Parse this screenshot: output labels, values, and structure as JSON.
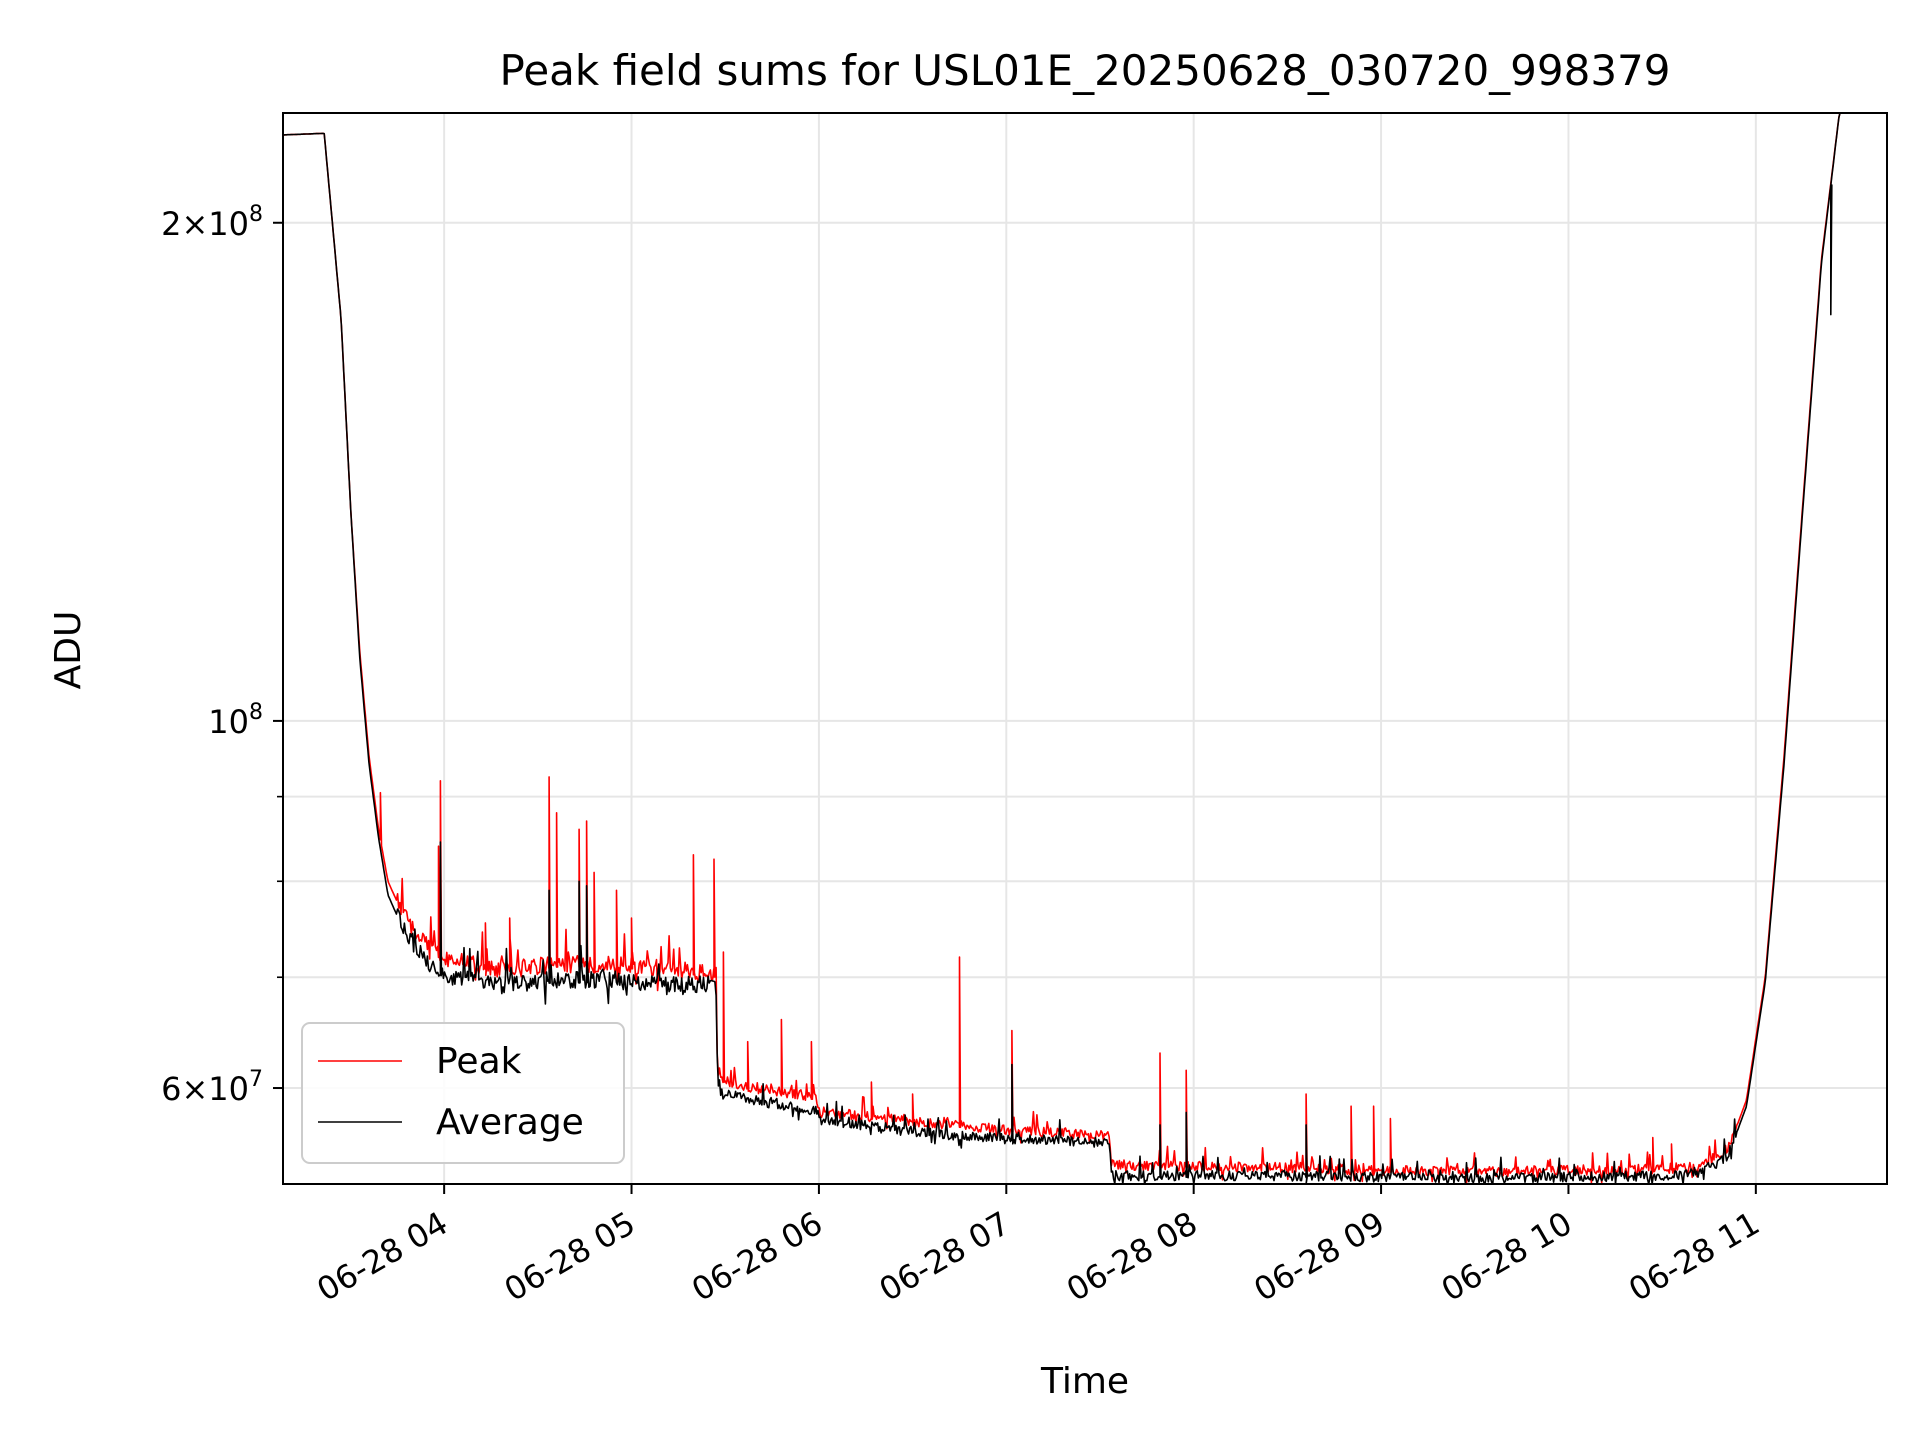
{
  "chart_data": {
    "type": "line",
    "title": "Peak field sums for USL01E_20250628_030720_998379",
    "xlabel": "Time",
    "ylabel": "ADU",
    "x_unit": "hours",
    "xlim": [
      3.14,
      11.7
    ],
    "ylim": [
      52500000,
      233000000
    ],
    "yscale": "log",
    "grid": true,
    "legend_position": "lower-left",
    "x_ticks": [
      {
        "value": 4,
        "label": "06-28 04"
      },
      {
        "value": 5,
        "label": "06-28 05"
      },
      {
        "value": 6,
        "label": "06-28 06"
      },
      {
        "value": 7,
        "label": "06-28 07"
      },
      {
        "value": 8,
        "label": "06-28 08"
      },
      {
        "value": 9,
        "label": "06-28 09"
      },
      {
        "value": 10,
        "label": "06-28 10"
      },
      {
        "value": 11,
        "label": "06-28 11"
      }
    ],
    "y_ticks": [
      {
        "value": 60000000,
        "mantissa": "6",
        "exp": "7"
      },
      {
        "value": 100000000,
        "mantissa": "",
        "exp": "8"
      },
      {
        "value": 200000000,
        "mantissa": "2",
        "exp": "8"
      }
    ],
    "y_minor_ticks": [
      70000000,
      80000000,
      90000000
    ],
    "series": [
      {
        "name": "Peak",
        "color": "#ff0000",
        "base_x": [
          3.14,
          3.36,
          3.45,
          3.5,
          3.55,
          3.6,
          3.65,
          3.7,
          3.8,
          3.9,
          4.0,
          4.3,
          4.6,
          4.9,
          5.2,
          5.45,
          5.46,
          5.49,
          5.6,
          5.8,
          5.99,
          6.0,
          6.3,
          6.6,
          7.0,
          7.55,
          7.56,
          7.58,
          8.0,
          8.5,
          9.0,
          9.5,
          10.0,
          10.5,
          10.7,
          10.85,
          10.95,
          11.05,
          11.15,
          11.25,
          11.35,
          11.45,
          11.5,
          11.7
        ],
        "base_y": [
          226000000,
          226500000,
          175000000,
          135000000,
          110000000,
          95000000,
          86000000,
          80000000,
          75500000,
          73000000,
          71500000,
          70500000,
          71000000,
          71000000,
          70500000,
          70000000,
          61000000,
          60500000,
          60000000,
          59500000,
          59000000,
          58000000,
          57500000,
          57000000,
          56500000,
          56000000,
          54000000,
          53800000,
          53700000,
          53600000,
          53400000,
          53300000,
          53400000,
          53500000,
          53700000,
          55000000,
          59000000,
          70000000,
          95000000,
          135000000,
          190000000,
          235000000,
          240000000,
          240000000
        ],
        "spikes": [
          {
            "x": 3.66,
            "y": 90500000
          },
          {
            "x": 3.98,
            "y": 92000000
          },
          {
            "x": 3.97,
            "y": 84000000
          },
          {
            "x": 4.22,
            "y": 75500000
          },
          {
            "x": 4.35,
            "y": 76000000
          },
          {
            "x": 4.56,
            "y": 92500000
          },
          {
            "x": 4.6,
            "y": 88000000
          },
          {
            "x": 4.72,
            "y": 86000000
          },
          {
            "x": 4.76,
            "y": 87000000
          },
          {
            "x": 4.8,
            "y": 81000000
          },
          {
            "x": 4.92,
            "y": 79000000
          },
          {
            "x": 5.0,
            "y": 76000000
          },
          {
            "x": 5.33,
            "y": 83000000
          },
          {
            "x": 5.44,
            "y": 82500000
          },
          {
            "x": 5.49,
            "y": 72500000
          },
          {
            "x": 5.62,
            "y": 64000000
          },
          {
            "x": 5.8,
            "y": 66000000
          },
          {
            "x": 5.96,
            "y": 64000000
          },
          {
            "x": 6.28,
            "y": 60500000
          },
          {
            "x": 6.5,
            "y": 59500000
          },
          {
            "x": 6.75,
            "y": 72000000
          },
          {
            "x": 7.03,
            "y": 65000000
          },
          {
            "x": 7.82,
            "y": 63000000
          },
          {
            "x": 7.96,
            "y": 61500000
          },
          {
            "x": 8.6,
            "y": 59500000
          },
          {
            "x": 8.84,
            "y": 58500000
          },
          {
            "x": 8.96,
            "y": 58500000
          },
          {
            "x": 9.05,
            "y": 57500000
          },
          {
            "x": 10.45,
            "y": 56000000
          },
          {
            "x": 10.55,
            "y": 55500000
          }
        ]
      },
      {
        "name": "Average",
        "color": "#000000",
        "base_x": [
          3.14,
          3.36,
          3.45,
          3.5,
          3.55,
          3.6,
          3.65,
          3.7,
          3.8,
          3.9,
          4.0,
          4.3,
          4.6,
          4.9,
          5.2,
          5.45,
          5.46,
          5.49,
          5.6,
          5.8,
          5.99,
          6.0,
          6.3,
          6.6,
          7.0,
          7.55,
          7.56,
          7.58,
          8.0,
          8.5,
          9.0,
          9.5,
          10.0,
          10.5,
          10.7,
          10.85,
          10.95,
          11.05,
          11.15,
          11.25,
          11.35,
          11.45,
          11.5,
          11.7
        ],
        "base_y": [
          226000000,
          226500000,
          175000000,
          135000000,
          109000000,
          94000000,
          85000000,
          78500000,
          74000000,
          71500000,
          70000000,
          69000000,
          69500000,
          69500000,
          69000000,
          69000000,
          60000000,
          59500000,
          59000000,
          58500000,
          58000000,
          57200000,
          56800000,
          56200000,
          55800000,
          55500000,
          53300000,
          53000000,
          53000000,
          53000000,
          52900000,
          52800000,
          52900000,
          53000000,
          53200000,
          54500000,
          58500000,
          69500000,
          94000000,
          134000000,
          189000000,
          235000000,
          240000000,
          240000000
        ],
        "spikes": [
          {
            "x": 3.98,
            "y": 84500000
          },
          {
            "x": 4.56,
            "y": 79000000
          },
          {
            "x": 4.72,
            "y": 80000000
          },
          {
            "x": 4.76,
            "y": 79500000
          },
          {
            "x": 7.03,
            "y": 62000000
          },
          {
            "x": 7.82,
            "y": 57000000
          },
          {
            "x": 7.96,
            "y": 58000000
          },
          {
            "x": 8.6,
            "y": 57000000
          },
          {
            "x": 11.4,
            "y": 176000000
          }
        ]
      }
    ]
  }
}
